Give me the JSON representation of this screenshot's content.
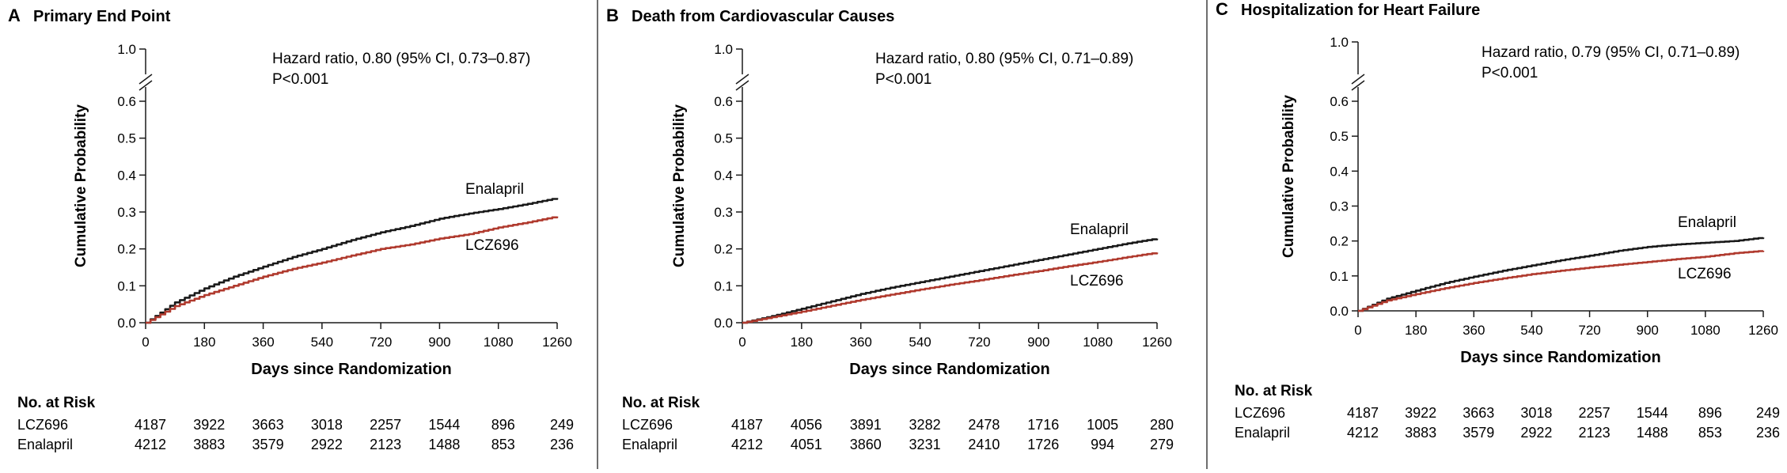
{
  "colors": {
    "enalapril": "#1a1a1a",
    "lcz696": "#b03a2e",
    "divider": "#6e6e6e"
  },
  "chart_data": [
    {
      "type": "line",
      "panel_letter": "A",
      "title": "Primary End Point",
      "xlabel": "Days since Randomization",
      "ylabel": "Cumulative Probability",
      "xlim": [
        0,
        1260
      ],
      "ylim": [
        0,
        0.6
      ],
      "y_break_label": "1.0",
      "x_ticks": [
        0,
        180,
        360,
        540,
        720,
        900,
        1080,
        1260
      ],
      "y_ticks": [
        "0.0",
        "0.1",
        "0.2",
        "0.3",
        "0.4",
        "0.5",
        "0.6"
      ],
      "annotation": [
        "Hazard ratio, 0.80 (95% CI, 0.73–0.87)",
        "P<0.001"
      ],
      "series": [
        {
          "name": "Enalapril",
          "color_key": "enalapril",
          "x": [
            0,
            90,
            180,
            270,
            360,
            450,
            540,
            630,
            720,
            810,
            900,
            990,
            1080,
            1170,
            1260
          ],
          "y": [
            0,
            0.055,
            0.093,
            0.125,
            0.152,
            0.178,
            0.2,
            0.224,
            0.245,
            0.262,
            0.282,
            0.296,
            0.308,
            0.322,
            0.338
          ]
        },
        {
          "name": "LCZ696",
          "color_key": "lcz696",
          "x": [
            0,
            90,
            180,
            270,
            360,
            450,
            540,
            630,
            720,
            810,
            900,
            990,
            1080,
            1170,
            1260
          ],
          "y": [
            0,
            0.045,
            0.075,
            0.1,
            0.125,
            0.146,
            0.163,
            0.182,
            0.2,
            0.212,
            0.228,
            0.24,
            0.258,
            0.272,
            0.288
          ]
        }
      ],
      "at_risk_header": "No. at Risk",
      "at_risk": [
        {
          "label": "LCZ696",
          "values": [
            "4187",
            "3922",
            "3663",
            "3018",
            "2257",
            "1544",
            "896",
            "249"
          ]
        },
        {
          "label": "Enalapril",
          "values": [
            "4212",
            "3883",
            "3579",
            "2922",
            "2123",
            "1488",
            "853",
            "236"
          ]
        }
      ]
    },
    {
      "type": "line",
      "panel_letter": "B",
      "title": "Death from Cardiovascular Causes",
      "xlabel": "Days since Randomization",
      "ylabel": "Cumulative Probability",
      "xlim": [
        0,
        1260
      ],
      "ylim": [
        0,
        0.6
      ],
      "y_break_label": "1.0",
      "x_ticks": [
        0,
        180,
        360,
        540,
        720,
        900,
        1080,
        1260
      ],
      "y_ticks": [
        "0.0",
        "0.1",
        "0.2",
        "0.3",
        "0.4",
        "0.5",
        "0.6"
      ],
      "annotation": [
        "Hazard ratio, 0.80 (95% CI, 0.71–0.89)",
        "P<0.001"
      ],
      "series": [
        {
          "name": "Enalapril",
          "color_key": "enalapril",
          "x": [
            0,
            90,
            180,
            270,
            360,
            450,
            540,
            630,
            720,
            810,
            900,
            990,
            1080,
            1170,
            1260
          ],
          "y": [
            0,
            0.018,
            0.038,
            0.058,
            0.078,
            0.095,
            0.11,
            0.125,
            0.14,
            0.155,
            0.17,
            0.185,
            0.2,
            0.215,
            0.228
          ]
        },
        {
          "name": "LCZ696",
          "color_key": "lcz696",
          "x": [
            0,
            90,
            180,
            270,
            360,
            450,
            540,
            630,
            720,
            810,
            900,
            990,
            1080,
            1170,
            1260
          ],
          "y": [
            0,
            0.015,
            0.03,
            0.046,
            0.062,
            0.076,
            0.09,
            0.103,
            0.115,
            0.128,
            0.14,
            0.153,
            0.165,
            0.178,
            0.19
          ]
        }
      ],
      "at_risk_header": "No. at Risk",
      "at_risk": [
        {
          "label": "LCZ696",
          "values": [
            "4187",
            "4056",
            "3891",
            "3282",
            "2478",
            "1716",
            "1005",
            "280"
          ]
        },
        {
          "label": "Enalapril",
          "values": [
            "4212",
            "4051",
            "3860",
            "3231",
            "2410",
            "1726",
            "994",
            "279"
          ]
        }
      ]
    },
    {
      "type": "line",
      "panel_letter": "C",
      "title": "Hospitalization for Heart Failure",
      "xlabel": "Days since Randomization",
      "ylabel": "Cumulative Probability",
      "xlim": [
        0,
        1260
      ],
      "ylim": [
        0,
        0.6
      ],
      "y_break_label": "1.0",
      "x_ticks": [
        0,
        180,
        360,
        540,
        720,
        900,
        1080,
        1260
      ],
      "y_ticks": [
        "0.0",
        "0.1",
        "0.2",
        "0.3",
        "0.4",
        "0.5",
        "0.6"
      ],
      "annotation": [
        "Hazard ratio, 0.79 (95% CI, 0.71–0.89)",
        "P<0.001"
      ],
      "series": [
        {
          "name": "Enalapril",
          "color_key": "enalapril",
          "x": [
            0,
            90,
            180,
            270,
            360,
            450,
            540,
            630,
            720,
            810,
            900,
            990,
            1080,
            1170,
            1260
          ],
          "y": [
            0,
            0.035,
            0.058,
            0.08,
            0.098,
            0.115,
            0.13,
            0.145,
            0.158,
            0.172,
            0.183,
            0.19,
            0.195,
            0.2,
            0.21
          ]
        },
        {
          "name": "LCZ696",
          "color_key": "lcz696",
          "x": [
            0,
            90,
            180,
            270,
            360,
            450,
            540,
            630,
            720,
            810,
            900,
            990,
            1080,
            1170,
            1260
          ],
          "y": [
            0,
            0.03,
            0.048,
            0.065,
            0.08,
            0.093,
            0.105,
            0.115,
            0.124,
            0.132,
            0.14,
            0.148,
            0.155,
            0.165,
            0.172
          ]
        }
      ],
      "at_risk_header": "No. at Risk",
      "at_risk": [
        {
          "label": "LCZ696",
          "values": [
            "4187",
            "3922",
            "3663",
            "3018",
            "2257",
            "1544",
            "896",
            "249"
          ]
        },
        {
          "label": "Enalapril",
          "values": [
            "4212",
            "3883",
            "3579",
            "2922",
            "2123",
            "1488",
            "853",
            "236"
          ]
        }
      ]
    }
  ]
}
